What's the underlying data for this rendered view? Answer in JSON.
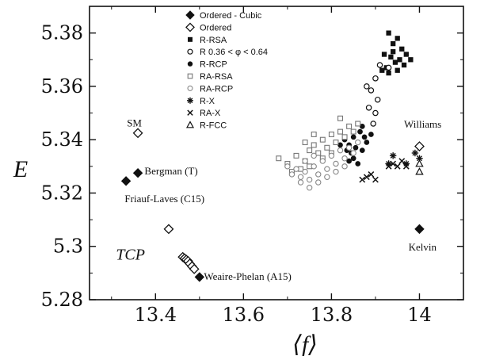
{
  "chart_data": {
    "type": "scatter",
    "title": "",
    "xlabel": "⟨f⟩",
    "ylabel": "E",
    "xlim": [
      13.25,
      14.1
    ],
    "ylim": [
      5.28,
      5.39
    ],
    "xticks": [
      13.4,
      13.6,
      13.8,
      14
    ],
    "xtick_labels": [
      "13.4",
      "13.6",
      "13.8",
      "14"
    ],
    "yticks": [
      5.28,
      5.3,
      5.32,
      5.34,
      5.36,
      5.38
    ],
    "ytick_labels": [
      "5.28",
      "5.3",
      "5.32",
      "5.34",
      "5.36",
      "5.38"
    ],
    "grid": false,
    "legend_position": "top-center",
    "series": [
      {
        "name": "Ordered - Cubic",
        "marker": "diamond-filled",
        "points": [
          [
            13.333,
            5.3245
          ],
          [
            13.36,
            5.3275
          ],
          [
            13.5,
            5.2885
          ],
          [
            14.0,
            5.3065
          ]
        ]
      },
      {
        "name": "Ordered",
        "marker": "diamond-open",
        "points": [
          [
            13.36,
            5.3425
          ],
          [
            13.43,
            5.3065
          ],
          [
            13.462,
            5.296
          ],
          [
            13.466,
            5.2955
          ],
          [
            13.47,
            5.295
          ],
          [
            13.474,
            5.2945
          ],
          [
            13.478,
            5.2935
          ],
          [
            13.483,
            5.2925
          ],
          [
            13.488,
            5.2915
          ],
          [
            14.0,
            5.3375
          ]
        ]
      },
      {
        "name": "R-RSA",
        "marker": "square-filled",
        "points": [
          [
            13.93,
            5.38
          ],
          [
            13.92,
            5.372
          ],
          [
            13.94,
            5.376
          ],
          [
            13.95,
            5.378
          ],
          [
            13.96,
            5.374
          ],
          [
            13.97,
            5.372
          ],
          [
            13.935,
            5.371
          ],
          [
            13.945,
            5.369
          ],
          [
            13.955,
            5.37
          ],
          [
            13.965,
            5.368
          ],
          [
            13.925,
            5.367
          ],
          [
            13.915,
            5.366
          ],
          [
            13.94,
            5.373
          ],
          [
            13.98,
            5.37
          ],
          [
            13.95,
            5.366
          ],
          [
            13.93,
            5.365
          ]
        ]
      },
      {
        "name": "R  0.36 < φ < 0.64",
        "marker": "circle-open",
        "points": [
          [
            13.88,
            5.36
          ],
          [
            13.89,
            5.3585
          ],
          [
            13.9,
            5.363
          ],
          [
            13.91,
            5.368
          ],
          [
            13.905,
            5.355
          ],
          [
            13.885,
            5.352
          ],
          [
            13.9,
            5.35
          ],
          [
            13.895,
            5.346
          ],
          [
            13.93,
            5.367
          ]
        ]
      },
      {
        "name": "R-RCP",
        "marker": "circle-filled",
        "points": [
          [
            13.82,
            5.338
          ],
          [
            13.83,
            5.34
          ],
          [
            13.835,
            5.336
          ],
          [
            13.84,
            5.338
          ],
          [
            13.845,
            5.335
          ],
          [
            13.85,
            5.341
          ],
          [
            13.855,
            5.337
          ],
          [
            13.86,
            5.339
          ],
          [
            13.865,
            5.343
          ],
          [
            13.87,
            5.336
          ],
          [
            13.875,
            5.341
          ],
          [
            13.88,
            5.339
          ],
          [
            13.85,
            5.333
          ],
          [
            13.86,
            5.331
          ],
          [
            13.84,
            5.332
          ],
          [
            13.87,
            5.345
          ],
          [
            13.89,
            5.342
          ]
        ]
      },
      {
        "name": "RA-RSA",
        "marker": "square-open",
        "points": [
          [
            13.68,
            5.333
          ],
          [
            13.7,
            5.331
          ],
          [
            13.72,
            5.334
          ],
          [
            13.74,
            5.332
          ],
          [
            13.75,
            5.336
          ],
          [
            13.76,
            5.338
          ],
          [
            13.77,
            5.335
          ],
          [
            13.78,
            5.34
          ],
          [
            13.79,
            5.337
          ],
          [
            13.8,
            5.342
          ],
          [
            13.81,
            5.339
          ],
          [
            13.82,
            5.343
          ],
          [
            13.83,
            5.341
          ],
          [
            13.84,
            5.345
          ],
          [
            13.85,
            5.343
          ],
          [
            13.86,
            5.346
          ],
          [
            13.73,
            5.329
          ],
          [
            13.71,
            5.328
          ],
          [
            13.75,
            5.33
          ],
          [
            13.78,
            5.333
          ],
          [
            13.8,
            5.335
          ],
          [
            13.76,
            5.342
          ],
          [
            13.82,
            5.348
          ],
          [
            13.74,
            5.339
          ]
        ]
      },
      {
        "name": "RA-RCP",
        "marker": "circle-open-gray",
        "points": [
          [
            13.7,
            5.33
          ],
          [
            13.71,
            5.327
          ],
          [
            13.72,
            5.329
          ],
          [
            13.73,
            5.326
          ],
          [
            13.74,
            5.328
          ],
          [
            13.75,
            5.325
          ],
          [
            13.76,
            5.33
          ],
          [
            13.77,
            5.327
          ],
          [
            13.78,
            5.332
          ],
          [
            13.79,
            5.329
          ],
          [
            13.8,
            5.334
          ],
          [
            13.81,
            5.331
          ],
          [
            13.82,
            5.336
          ],
          [
            13.83,
            5.333
          ],
          [
            13.84,
            5.337
          ],
          [
            13.85,
            5.335
          ],
          [
            13.73,
            5.324
          ],
          [
            13.75,
            5.322
          ],
          [
            13.77,
            5.324
          ],
          [
            13.79,
            5.326
          ],
          [
            13.81,
            5.328
          ],
          [
            13.83,
            5.33
          ],
          [
            13.76,
            5.334
          ],
          [
            13.74,
            5.332
          ],
          [
            13.86,
            5.339
          ]
        ]
      },
      {
        "name": "R-X",
        "marker": "asterisk",
        "points": [
          [
            13.94,
            5.334
          ],
          [
            13.97,
            5.331
          ],
          [
            13.99,
            5.335
          ],
          [
            14.0,
            5.333
          ],
          [
            13.93,
            5.331
          ]
        ]
      },
      {
        "name": "RA-X",
        "marker": "cross",
        "points": [
          [
            13.87,
            5.325
          ],
          [
            13.88,
            5.326
          ],
          [
            13.89,
            5.327
          ],
          [
            13.9,
            5.325
          ],
          [
            13.93,
            5.33
          ],
          [
            13.94,
            5.331
          ],
          [
            13.95,
            5.33
          ],
          [
            13.96,
            5.332
          ],
          [
            13.97,
            5.33
          ]
        ]
      },
      {
        "name": "R-FCC",
        "marker": "triangle-open",
        "points": [
          [
            14.0,
            5.331
          ],
          [
            14.0,
            5.328
          ]
        ]
      }
    ],
    "annotations": [
      {
        "text": "SM",
        "x": 13.335,
        "y": 5.345,
        "style": "normal"
      },
      {
        "text": "Bergman (T)",
        "x": 13.375,
        "y": 5.327,
        "style": "normal"
      },
      {
        "text": "Friauf-Laves (C15)",
        "x": 13.33,
        "y": 5.3165,
        "style": "normal"
      },
      {
        "text": "TCP",
        "x": 13.31,
        "y": 5.295,
        "style": "italic"
      },
      {
        "text": "Weaire-Phelan (A15)",
        "x": 13.51,
        "y": 5.2875,
        "style": "normal"
      },
      {
        "text": "Williams",
        "x": 13.965,
        "y": 5.3445,
        "style": "normal"
      },
      {
        "text": "Kelvin",
        "x": 13.975,
        "y": 5.2985,
        "style": "normal"
      }
    ]
  }
}
